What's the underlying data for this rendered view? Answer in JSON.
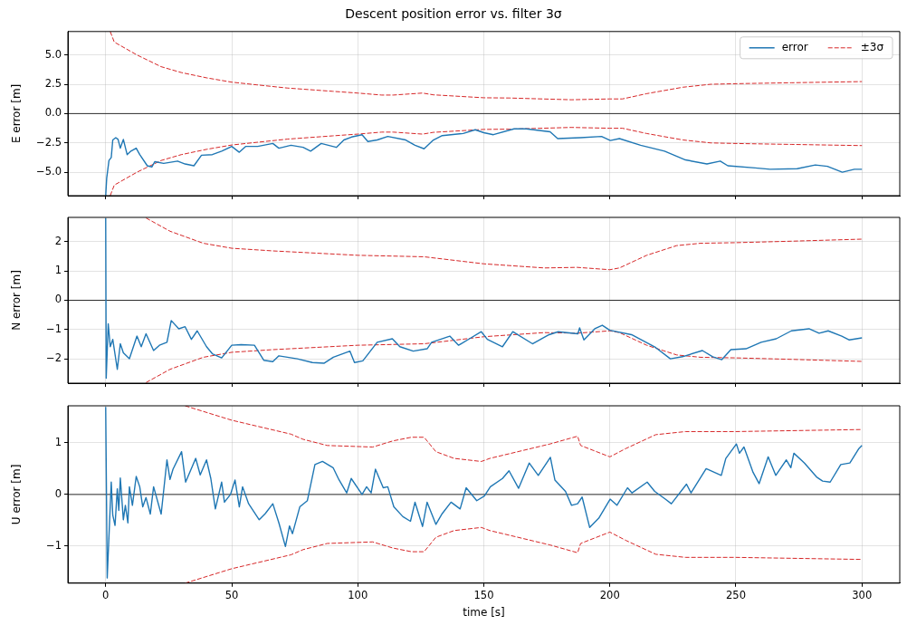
{
  "chart_data": [
    {
      "type": "line",
      "title": "Descent position error vs. filter 3σ",
      "ylabel": "E error [m]",
      "xlim": [
        -15,
        315
      ],
      "xticks": [
        0,
        50,
        100,
        150,
        200,
        250,
        300
      ],
      "ylim": [
        -7,
        7
      ],
      "yticks": [
        {
          "value": -5,
          "label": "−5.0"
        },
        {
          "value": -2.5,
          "label": "−2.5"
        },
        {
          "value": 0,
          "label": "0.0"
        },
        {
          "value": 2.5,
          "label": "2.5"
        },
        {
          "value": 5,
          "label": "5.0"
        }
      ],
      "grid": true,
      "legend": "top right",
      "tick_labels": "y",
      "marker": "none",
      "ref_lines": [
        {
          "axis": "y",
          "value": 0,
          "color": "#000000"
        }
      ],
      "series": [
        {
          "name": "error",
          "color": "#1f77b4",
          "line_style": "solid",
          "x": [
            0,
            0.4,
            1.3,
            2.2,
            2.8,
            4,
            4.9,
            5.8,
            7,
            8.5,
            10,
            12.1,
            13.5,
            16.5,
            18.3,
            19.5,
            23,
            28.5,
            31.5,
            35,
            38,
            42.3,
            46,
            50,
            53,
            55.5,
            60.3,
            66.3,
            68.7,
            73.5,
            78.3,
            81.3,
            85.5,
            91.5,
            94.5,
            97.5,
            101.7,
            104,
            107.7,
            111.9,
            119,
            122.7,
            126.3,
            130,
            133.5,
            141.8,
            146.6,
            150,
            153.8,
            162,
            166.8,
            176.3,
            179.3,
            188.3,
            196.7,
            200.2,
            203.8,
            212.2,
            221.7,
            230,
            238.5,
            243.8,
            246.8,
            257.6,
            263.6,
            274.3,
            281.5,
            286.3,
            292.2,
            297,
            300
          ],
          "values": [
            -7,
            -5.5,
            -4.0,
            -3.75,
            -2.25,
            -2.05,
            -2.2,
            -2.95,
            -2.2,
            -3.5,
            -3.2,
            -2.95,
            -3.5,
            -4.45,
            -4.55,
            -4.1,
            -4.25,
            -4.05,
            -4.3,
            -4.45,
            -3.55,
            -3.5,
            -3.2,
            -2.8,
            -3.3,
            -2.8,
            -2.8,
            -2.55,
            -2.95,
            -2.7,
            -2.88,
            -3.2,
            -2.55,
            -2.88,
            -2.25,
            -2.0,
            -1.8,
            -2.38,
            -2.25,
            -1.95,
            -2.25,
            -2.7,
            -3.0,
            -2.25,
            -1.88,
            -1.7,
            -1.38,
            -1.63,
            -1.8,
            -1.3,
            -1.3,
            -1.55,
            -2.13,
            -2.05,
            -1.95,
            -2.3,
            -2.13,
            -2.7,
            -3.2,
            -3.95,
            -4.3,
            -4.05,
            -4.45,
            -4.63,
            -4.75,
            -4.7,
            -4.38,
            -4.5,
            -5.0,
            -4.75,
            -4.75
          ]
        },
        {
          "name": "±3σ",
          "color": "#d62728",
          "line_style": "dashed",
          "x": [
            1.8,
            3.4,
            12.4,
            22,
            30,
            40,
            50,
            60,
            72,
            90,
            100,
            109.5,
            114,
            125.7,
            130,
            150,
            160,
            184.7,
            200,
            205,
            214.6,
            229,
            240,
            250,
            272,
            300
          ],
          "values": [
            7.0,
            6.1,
            5.0,
            4.0,
            3.5,
            3.05,
            2.68,
            2.45,
            2.18,
            1.9,
            1.75,
            1.58,
            1.58,
            1.75,
            1.6,
            1.35,
            1.33,
            1.18,
            1.25,
            1.25,
            1.7,
            2.25,
            2.5,
            2.55,
            2.63,
            2.73
          ]
        },
        {
          "color": "#d62728",
          "line_style": "dashed",
          "x": [
            1.8,
            3.4,
            12.4,
            22,
            30,
            40,
            50,
            60,
            72,
            90,
            100,
            109.5,
            114,
            125.7,
            130,
            150,
            160,
            184.7,
            200,
            205,
            214.6,
            229,
            240,
            250,
            272,
            300
          ],
          "values": [
            -7.0,
            -6.1,
            -5.0,
            -4.0,
            -3.5,
            -3.05,
            -2.68,
            -2.45,
            -2.18,
            -1.9,
            -1.75,
            -1.58,
            -1.58,
            -1.75,
            -1.6,
            -1.35,
            -1.33,
            -1.18,
            -1.25,
            -1.25,
            -1.7,
            -2.25,
            -2.5,
            -2.55,
            -2.63,
            -2.73
          ]
        }
      ]
    },
    {
      "type": "line",
      "ylabel": "N error [m]",
      "xlim": [
        -15,
        315
      ],
      "xticks": [
        0,
        50,
        100,
        150,
        200,
        250,
        300
      ],
      "ylim": [
        -2.82,
        2.82
      ],
      "yticks": [
        {
          "value": -2,
          "label": "−2"
        },
        {
          "value": -1,
          "label": "−1"
        },
        0,
        1,
        2
      ],
      "grid": true,
      "tick_labels": "y",
      "marker": "none",
      "ref_lines": [
        {
          "axis": "y",
          "value": 0,
          "color": "#000000"
        }
      ],
      "series": [
        {
          "color": "#1f77b4",
          "line_style": "solid",
          "x": [
            0,
            0.2,
            1,
            1.8,
            2.8,
            4.6,
            5.8,
            7,
            9.4,
            12.4,
            14.1,
            16,
            19,
            21.3,
            24.3,
            26,
            29,
            31.5,
            34,
            36.3,
            40,
            42.3,
            46,
            50,
            53.7,
            59,
            62.7,
            66.3,
            68.7,
            76,
            82,
            86.7,
            90.3,
            96.9,
            98.7,
            102,
            107.7,
            113.7,
            116.7,
            122,
            127.5,
            129.3,
            136.5,
            140,
            144.3,
            149,
            151.4,
            157.4,
            161.5,
            169.3,
            175.9,
            179.5,
            187.3,
            188,
            189.7,
            194,
            197,
            200,
            208.6,
            218.2,
            224,
            228.8,
            236.7,
            240.8,
            244.4,
            248,
            254,
            260,
            266,
            272,
            279,
            283,
            286.6,
            292,
            295,
            300
          ],
          "values": [
            2.8,
            -2.65,
            -0.8,
            -1.58,
            -1.33,
            -2.35,
            -1.48,
            -1.79,
            -1.99,
            -1.22,
            -1.58,
            -1.14,
            -1.71,
            -1.53,
            -1.43,
            -0.69,
            -0.97,
            -0.9,
            -1.33,
            -1.04,
            -1.58,
            -1.82,
            -1.96,
            -1.53,
            -1.51,
            -1.53,
            -2.04,
            -2.09,
            -1.89,
            -1.99,
            -2.12,
            -2.14,
            -1.94,
            -1.73,
            -2.12,
            -2.06,
            -1.43,
            -1.31,
            -1.58,
            -1.73,
            -1.65,
            -1.43,
            -1.22,
            -1.53,
            -1.31,
            -1.07,
            -1.33,
            -1.58,
            -1.07,
            -1.48,
            -1.17,
            -1.07,
            -1.14,
            -0.94,
            -1.35,
            -0.97,
            -0.85,
            -1.02,
            -1.17,
            -1.61,
            -1.99,
            -1.92,
            -1.71,
            -1.92,
            -2.02,
            -1.68,
            -1.65,
            -1.43,
            -1.31,
            -1.04,
            -0.97,
            -1.12,
            -1.04,
            -1.22,
            -1.35,
            -1.28
          ]
        },
        {
          "color": "#d62728",
          "line_style": "dashed",
          "x": [
            16,
            25.5,
            38.7,
            50,
            66.3,
            100,
            126.3,
            150,
            174,
            187,
            200,
            203.8,
            214.6,
            226.5,
            236,
            250,
            272,
            300
          ],
          "values": [
            2.8,
            2.35,
            1.94,
            1.77,
            1.68,
            1.53,
            1.48,
            1.24,
            1.1,
            1.12,
            1.04,
            1.1,
            1.53,
            1.86,
            1.94,
            1.96,
            2.01,
            2.08
          ]
        },
        {
          "color": "#d62728",
          "line_style": "dashed",
          "x": [
            16,
            25.5,
            38.7,
            50,
            66.3,
            100,
            126.3,
            150,
            174,
            187,
            200,
            203.8,
            214.6,
            226.5,
            236,
            250,
            272,
            300
          ],
          "values": [
            -2.8,
            -2.35,
            -1.94,
            -1.77,
            -1.68,
            -1.53,
            -1.48,
            -1.24,
            -1.1,
            -1.12,
            -1.04,
            -1.1,
            -1.53,
            -1.86,
            -1.94,
            -1.96,
            -2.01,
            -2.08
          ]
        }
      ]
    },
    {
      "type": "line",
      "ylabel": "U error [m]",
      "xlabel": "time [s]",
      "xlim": [
        -15,
        315
      ],
      "xticks": [
        0,
        50,
        100,
        150,
        200,
        250,
        300
      ],
      "ylim": [
        -1.72,
        1.72
      ],
      "yticks": [
        {
          "value": -1,
          "label": "−1"
        },
        0,
        1
      ],
      "grid": true,
      "marker": "none",
      "ref_lines": [
        {
          "axis": "y",
          "value": 0,
          "color": "#000000"
        }
      ],
      "series": [
        {
          "color": "#1f77b4",
          "line_style": "solid",
          "x": [
            0,
            0.6,
            2.2,
            2.8,
            3.7,
            4.6,
            5.2,
            5.8,
            7,
            7.8,
            8.8,
            9.4,
            10.6,
            12.1,
            13.5,
            14.7,
            16,
            17.7,
            19,
            22,
            24.3,
            25.5,
            26.7,
            30.1,
            31.7,
            35.7,
            37.5,
            40,
            41.7,
            43.5,
            46,
            47.1,
            49.5,
            51.3,
            53,
            54.3,
            56.7,
            60.9,
            63.3,
            66.3,
            68.7,
            71.3,
            72.9,
            74.1,
            77,
            80,
            83,
            86,
            90.2,
            92.6,
            95.6,
            97.4,
            101.7,
            103.5,
            105.3,
            107,
            110.1,
            111.9,
            114.3,
            117.9,
            120.9,
            122.7,
            125.7,
            127.5,
            131,
            133.5,
            137,
            140.6,
            143,
            147.2,
            150.2,
            152.6,
            157.4,
            160,
            163.8,
            168,
            171.6,
            176.4,
            178.2,
            182.4,
            184.8,
            187.2,
            189,
            192,
            195.6,
            200.1,
            202.8,
            207,
            208.8,
            214.8,
            217.8,
            222,
            224.4,
            230.4,
            232.2,
            238.2,
            244.2,
            246,
            250.2,
            251.4,
            253.2,
            256.8,
            259.2,
            262.8,
            265.8,
            270,
            271.8,
            273,
            277.2,
            282,
            284.4,
            287.4,
            291.6,
            295.2,
            298.8,
            300
          ],
          "values": [
            1.7,
            -1.62,
            0.24,
            -0.4,
            -0.6,
            0.11,
            -0.31,
            0.32,
            -0.49,
            -0.21,
            -0.55,
            0.15,
            -0.21,
            0.35,
            0.15,
            -0.24,
            -0.06,
            -0.38,
            0.15,
            -0.38,
            0.67,
            0.29,
            0.49,
            0.83,
            0.24,
            0.7,
            0.38,
            0.67,
            0.31,
            -0.28,
            0.24,
            -0.15,
            0,
            0.28,
            -0.24,
            0.15,
            -0.18,
            -0.49,
            -0.37,
            -0.18,
            -0.55,
            -1.01,
            -0.61,
            -0.76,
            -0.24,
            -0.12,
            0.58,
            0.64,
            0.52,
            0.28,
            0.03,
            0.31,
            0,
            0.15,
            0.03,
            0.49,
            0.13,
            0.15,
            -0.24,
            -0.43,
            -0.52,
            -0.15,
            -0.62,
            -0.15,
            -0.58,
            -0.37,
            -0.15,
            -0.28,
            0.13,
            -0.12,
            -0.03,
            0.15,
            0.31,
            0.46,
            0.12,
            0.61,
            0.37,
            0.72,
            0.28,
            0.06,
            -0.21,
            -0.18,
            -0.05,
            -0.64,
            -0.46,
            -0.09,
            -0.21,
            0.13,
            0.03,
            0.24,
            0.06,
            -0.09,
            -0.18,
            0.2,
            0.03,
            0.5,
            0.37,
            0.7,
            0.98,
            0.8,
            0.92,
            0.43,
            0.21,
            0.73,
            0.37,
            0.67,
            0.52,
            0.8,
            0.61,
            0.34,
            0.26,
            0.24,
            0.58,
            0.61,
            0.89,
            0.95
          ]
        },
        {
          "color": "#d62728",
          "line_style": "dashed",
          "x": [
            31.5,
            50,
            73.5,
            78.3,
            87.9,
            105.9,
            114,
            121.3,
            126.3,
            131,
            138.2,
            149,
            152.4,
            176.3,
            187.2,
            188.4,
            200,
            206.3,
            218.2,
            230,
            250,
            300
          ],
          "values": [
            1.72,
            1.44,
            1.17,
            1.07,
            0.95,
            0.92,
            1.04,
            1.11,
            1.11,
            0.83,
            0.7,
            0.64,
            0.7,
            0.98,
            1.13,
            0.95,
            0.73,
            0.89,
            1.16,
            1.22,
            1.22,
            1.26
          ]
        },
        {
          "color": "#d62728",
          "line_style": "dashed",
          "x": [
            31.5,
            50,
            73.5,
            78.3,
            87.9,
            105.9,
            114,
            121.3,
            126.3,
            131,
            138.2,
            149,
            152.4,
            176.3,
            187.2,
            188.4,
            200,
            206.3,
            218.2,
            230,
            250,
            300
          ],
          "values": [
            -1.72,
            -1.44,
            -1.17,
            -1.07,
            -0.95,
            -0.92,
            -1.04,
            -1.11,
            -1.11,
            -0.83,
            -0.7,
            -0.64,
            -0.7,
            -0.98,
            -1.13,
            -0.95,
            -0.73,
            -0.89,
            -1.16,
            -1.22,
            -1.22,
            -1.26
          ]
        }
      ]
    }
  ]
}
